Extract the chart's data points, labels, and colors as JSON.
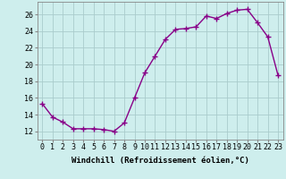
{
  "x": [
    0,
    1,
    2,
    3,
    4,
    5,
    6,
    7,
    8,
    9,
    10,
    11,
    12,
    13,
    14,
    15,
    16,
    17,
    18,
    19,
    20,
    21,
    22,
    23
  ],
  "y": [
    15.3,
    13.7,
    13.1,
    12.3,
    12.3,
    12.3,
    12.2,
    12.0,
    13.0,
    16.0,
    19.0,
    21.0,
    23.0,
    24.2,
    24.3,
    24.5,
    25.8,
    25.5,
    26.1,
    26.5,
    26.6,
    25.0,
    23.3,
    18.7
  ],
  "line_color": "#880088",
  "marker": "+",
  "markersize": 4,
  "linewidth": 1.0,
  "background_color": "#ceeeed",
  "grid_color": "#aacccc",
  "xlabel": "Windchill (Refroidissement éolien,°C)",
  "xlabel_fontsize": 6.5,
  "ylabel_ticks": [
    12,
    14,
    16,
    18,
    20,
    22,
    24,
    26
  ],
  "ylim": [
    11.0,
    27.5
  ],
  "xlim": [
    -0.5,
    23.5
  ],
  "xtick_labels": [
    "0",
    "1",
    "2",
    "3",
    "4",
    "5",
    "6",
    "7",
    "8",
    "9",
    "10",
    "11",
    "12",
    "13",
    "14",
    "15",
    "16",
    "17",
    "18",
    "19",
    "20",
    "21",
    "22",
    "23"
  ],
  "tick_fontsize": 6.0
}
